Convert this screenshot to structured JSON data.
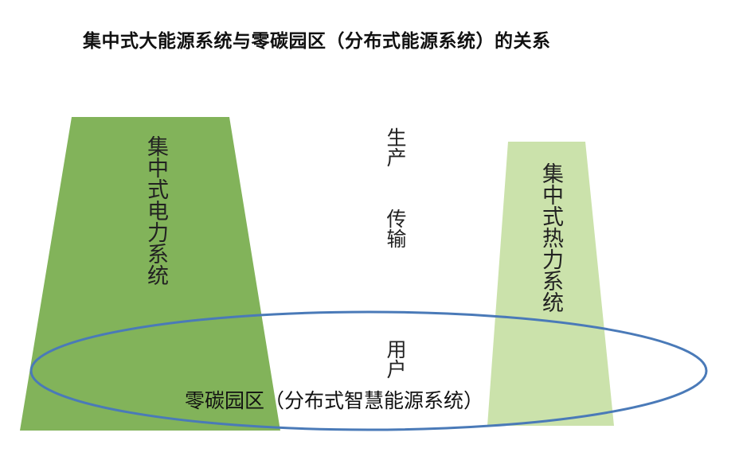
{
  "title": "集中式大能源系统与零碳园区（分布式能源系统）的关系",
  "nodes": {
    "power": {
      "label": "集中式电力系统",
      "color": "#82b35a"
    },
    "heat": {
      "label": "集中式热力系统",
      "color": "#cbe2ab"
    },
    "park": {
      "label": "零碳园区（分布式智慧能源系统）",
      "outline_color": "#4a7ab8"
    }
  },
  "stages": {
    "production": "生产",
    "transmission": "传输",
    "user": "用户"
  }
}
